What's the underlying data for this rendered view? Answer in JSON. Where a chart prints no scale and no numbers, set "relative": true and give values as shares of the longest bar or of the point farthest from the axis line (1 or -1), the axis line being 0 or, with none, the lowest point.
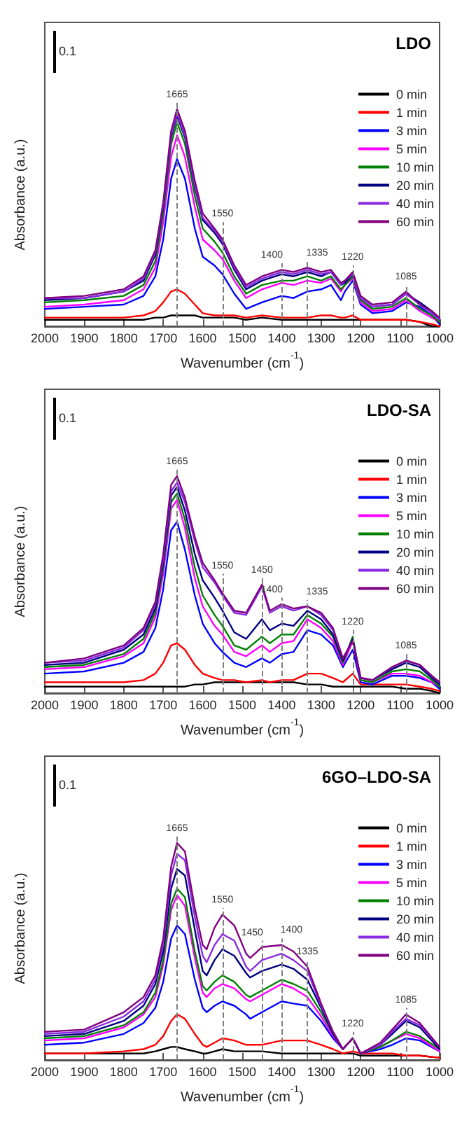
{
  "chart_data": [
    {
      "type": "line",
      "title": "LDO",
      "xlabel": "Wavenumber (cm$^{-1}$)",
      "ylabel": "Absorbance (a.u.)",
      "relative": true,
      "tick_labels": "x",
      "legend": "right",
      "annotations": [
        "0.1"
      ],
      "xlim": [
        2000,
        1000
      ],
      "xticks": [
        2000,
        1900,
        1800,
        1700,
        1600,
        1500,
        1400,
        1300,
        1200,
        1100,
        1000
      ],
      "x": [
        2000,
        1900,
        1800,
        1750,
        1720,
        1700,
        1680,
        1665,
        1645,
        1620,
        1600,
        1570,
        1550,
        1520,
        1490,
        1450,
        1400,
        1370,
        1335,
        1300,
        1275,
        1250,
        1240,
        1220,
        1200,
        1170,
        1120,
        1085,
        1050,
        1020,
        1000
      ],
      "ref_lines": [
        {
          "axis": "x",
          "value": 1665,
          "label": "1665",
          "line_style": "dashed",
          "color": "#808080"
        },
        {
          "axis": "x",
          "value": 1550,
          "label": "1550",
          "line_style": "dashed",
          "color": "#808080"
        },
        {
          "axis": "x",
          "value": 1400,
          "label": "1400",
          "line_style": "dashed",
          "color": "#808080"
        },
        {
          "axis": "x",
          "value": 1335,
          "label": "1335",
          "line_style": "dashed",
          "color": "#808080"
        },
        {
          "axis": "x",
          "value": 1220,
          "label": "1220",
          "line_style": "dashed",
          "color": "#808080"
        },
        {
          "axis": "x",
          "value": 1085,
          "label": "1085",
          "line_style": "dashed",
          "color": "#808080"
        }
      ],
      "series": [
        {
          "name": "0 min",
          "color": "#000000",
          "values": [
            0.03,
            0.03,
            0.03,
            0.03,
            0.04,
            0.04,
            0.05,
            0.05,
            0.05,
            0.05,
            0.04,
            0.04,
            0.04,
            0.04,
            0.03,
            0.04,
            0.03,
            0.03,
            0.03,
            0.03,
            0.03,
            0.03,
            0.03,
            0.03,
            0.03,
            0.03,
            0.03,
            0.03,
            0.02,
            0.0,
            0.0
          ]
        },
        {
          "name": "1 min",
          "color": "#ff0000",
          "values": [
            0.04,
            0.04,
            0.04,
            0.05,
            0.07,
            0.11,
            0.16,
            0.17,
            0.15,
            0.1,
            0.06,
            0.05,
            0.05,
            0.05,
            0.04,
            0.05,
            0.04,
            0.04,
            0.04,
            0.05,
            0.05,
            0.04,
            0.04,
            0.05,
            0.03,
            0.03,
            0.03,
            0.03,
            0.02,
            0.01,
            0.0
          ]
        },
        {
          "name": "3 min",
          "color": "#0000ff",
          "values": [
            0.08,
            0.09,
            0.1,
            0.14,
            0.23,
            0.4,
            0.68,
            0.77,
            0.68,
            0.45,
            0.32,
            0.28,
            0.24,
            0.15,
            0.08,
            0.11,
            0.14,
            0.13,
            0.16,
            0.17,
            0.19,
            0.12,
            0.16,
            0.21,
            0.1,
            0.06,
            0.07,
            0.11,
            0.09,
            0.05,
            0.01
          ]
        },
        {
          "name": "5 min",
          "color": "#ff00ff",
          "values": [
            0.09,
            0.1,
            0.12,
            0.17,
            0.27,
            0.48,
            0.78,
            0.88,
            0.78,
            0.55,
            0.4,
            0.35,
            0.31,
            0.21,
            0.13,
            0.17,
            0.2,
            0.19,
            0.21,
            0.2,
            0.22,
            0.16,
            0.19,
            0.22,
            0.11,
            0.07,
            0.08,
            0.12,
            0.07,
            0.04,
            0.02
          ]
        },
        {
          "name": "10 min",
          "color": "#008000",
          "values": [
            0.11,
            0.12,
            0.14,
            0.19,
            0.3,
            0.52,
            0.84,
            0.94,
            0.84,
            0.6,
            0.45,
            0.39,
            0.34,
            0.23,
            0.15,
            0.19,
            0.21,
            0.21,
            0.23,
            0.21,
            0.23,
            0.17,
            0.19,
            0.23,
            0.12,
            0.08,
            0.09,
            0.13,
            0.08,
            0.05,
            0.02
          ]
        },
        {
          "name": "20 min",
          "color": "#000080",
          "values": [
            0.12,
            0.13,
            0.16,
            0.21,
            0.33,
            0.55,
            0.87,
            0.97,
            0.87,
            0.64,
            0.49,
            0.43,
            0.38,
            0.26,
            0.17,
            0.21,
            0.24,
            0.23,
            0.25,
            0.23,
            0.25,
            0.19,
            0.2,
            0.24,
            0.13,
            0.09,
            0.1,
            0.15,
            0.11,
            0.07,
            0.03
          ]
        },
        {
          "name": "40 min",
          "color": "#8a2be2",
          "values": [
            0.13,
            0.13,
            0.16,
            0.22,
            0.34,
            0.56,
            0.88,
            0.98,
            0.88,
            0.65,
            0.5,
            0.44,
            0.39,
            0.27,
            0.18,
            0.22,
            0.25,
            0.24,
            0.26,
            0.24,
            0.25,
            0.19,
            0.21,
            0.24,
            0.13,
            0.09,
            0.1,
            0.15,
            0.1,
            0.06,
            0.03
          ]
        },
        {
          "name": "60 min",
          "color": "#800080",
          "values": [
            0.13,
            0.14,
            0.17,
            0.23,
            0.35,
            0.57,
            0.9,
            1.0,
            0.9,
            0.67,
            0.52,
            0.45,
            0.4,
            0.28,
            0.19,
            0.23,
            0.26,
            0.25,
            0.27,
            0.25,
            0.26,
            0.2,
            0.21,
            0.25,
            0.14,
            0.1,
            0.11,
            0.16,
            0.1,
            0.07,
            0.04
          ]
        }
      ]
    },
    {
      "type": "line",
      "title": "LDO-SA",
      "xlabel": "Wavenumber (cm$^{-1}$)",
      "ylabel": "Absorbance (a.u.)",
      "relative": true,
      "tick_labels": "x",
      "legend": "right",
      "annotations": [
        "0.1"
      ],
      "xlim": [
        2000,
        1000
      ],
      "xticks": [
        2000,
        1900,
        1800,
        1700,
        1600,
        1500,
        1400,
        1300,
        1200,
        1100,
        1000
      ],
      "x": [
        2000,
        1900,
        1800,
        1750,
        1720,
        1700,
        1680,
        1665,
        1645,
        1620,
        1600,
        1570,
        1550,
        1520,
        1490,
        1450,
        1430,
        1400,
        1370,
        1335,
        1300,
        1270,
        1245,
        1220,
        1200,
        1170,
        1120,
        1085,
        1050,
        1020,
        1000
      ],
      "ref_lines": [
        {
          "axis": "x",
          "value": 1665,
          "label": "1665",
          "line_style": "dashed",
          "color": "#808080"
        },
        {
          "axis": "x",
          "value": 1550,
          "label": "1550",
          "line_style": "dashed",
          "color": "#808080"
        },
        {
          "axis": "x",
          "value": 1450,
          "label": "1450",
          "line_style": "dashed",
          "color": "#808080"
        },
        {
          "axis": "x",
          "value": 1400,
          "label": "1400",
          "line_style": "dashed",
          "color": "#808080"
        },
        {
          "axis": "x",
          "value": 1335,
          "label": "1335",
          "line_style": "dashed",
          "color": "#808080"
        },
        {
          "axis": "x",
          "value": 1220,
          "label": "1220",
          "line_style": "dashed",
          "color": "#808080"
        },
        {
          "axis": "x",
          "value": 1085,
          "label": "1085",
          "line_style": "dashed",
          "color": "#808080"
        }
      ],
      "series": [
        {
          "name": "0 min",
          "color": "#000000",
          "values": [
            0.03,
            0.03,
            0.03,
            0.03,
            0.03,
            0.03,
            0.03,
            0.03,
            0.03,
            0.04,
            0.04,
            0.05,
            0.05,
            0.05,
            0.05,
            0.05,
            0.05,
            0.05,
            0.05,
            0.04,
            0.04,
            0.03,
            0.03,
            0.03,
            0.03,
            0.03,
            0.03,
            0.02,
            0.02,
            0.01,
            0.0
          ]
        },
        {
          "name": "1 min",
          "color": "#ff0000",
          "values": [
            0.05,
            0.05,
            0.05,
            0.06,
            0.09,
            0.14,
            0.22,
            0.23,
            0.2,
            0.13,
            0.09,
            0.07,
            0.06,
            0.06,
            0.05,
            0.06,
            0.05,
            0.06,
            0.06,
            0.09,
            0.09,
            0.07,
            0.05,
            0.09,
            0.04,
            0.04,
            0.04,
            0.04,
            0.03,
            0.02,
            0.01
          ]
        },
        {
          "name": "3 min",
          "color": "#0000ff",
          "values": [
            0.09,
            0.1,
            0.14,
            0.19,
            0.3,
            0.48,
            0.75,
            0.79,
            0.66,
            0.45,
            0.32,
            0.23,
            0.19,
            0.14,
            0.12,
            0.16,
            0.14,
            0.18,
            0.19,
            0.29,
            0.27,
            0.22,
            0.12,
            0.2,
            0.05,
            0.04,
            0.08,
            0.08,
            0.07,
            0.05,
            0.02
          ]
        },
        {
          "name": "5 min",
          "color": "#ff00ff",
          "values": [
            0.11,
            0.12,
            0.17,
            0.23,
            0.35,
            0.55,
            0.85,
            0.89,
            0.76,
            0.53,
            0.4,
            0.31,
            0.27,
            0.19,
            0.17,
            0.22,
            0.19,
            0.23,
            0.24,
            0.34,
            0.3,
            0.24,
            0.13,
            0.24,
            0.06,
            0.05,
            0.09,
            0.09,
            0.08,
            0.05,
            0.03
          ]
        },
        {
          "name": "10 min",
          "color": "#008000",
          "values": [
            0.12,
            0.13,
            0.18,
            0.25,
            0.37,
            0.58,
            0.88,
            0.92,
            0.8,
            0.58,
            0.45,
            0.36,
            0.31,
            0.22,
            0.2,
            0.26,
            0.23,
            0.27,
            0.27,
            0.36,
            0.32,
            0.26,
            0.14,
            0.26,
            0.06,
            0.05,
            0.1,
            0.11,
            0.1,
            0.06,
            0.03
          ]
        },
        {
          "name": "20 min",
          "color": "#000080",
          "values": [
            0.13,
            0.14,
            0.2,
            0.27,
            0.39,
            0.6,
            0.91,
            0.95,
            0.84,
            0.64,
            0.52,
            0.44,
            0.38,
            0.28,
            0.25,
            0.34,
            0.29,
            0.32,
            0.31,
            0.38,
            0.34,
            0.27,
            0.15,
            0.25,
            0.07,
            0.06,
            0.11,
            0.14,
            0.12,
            0.07,
            0.04
          ]
        },
        {
          "name": "40 min",
          "color": "#8a2be2",
          "values": [
            0.14,
            0.15,
            0.21,
            0.29,
            0.41,
            0.62,
            0.93,
            0.97,
            0.88,
            0.7,
            0.58,
            0.51,
            0.45,
            0.37,
            0.36,
            0.49,
            0.37,
            0.4,
            0.38,
            0.4,
            0.36,
            0.29,
            0.16,
            0.24,
            0.07,
            0.06,
            0.12,
            0.15,
            0.13,
            0.08,
            0.05
          ]
        },
        {
          "name": "60 min",
          "color": "#800080",
          "values": [
            0.14,
            0.16,
            0.22,
            0.3,
            0.42,
            0.64,
            0.96,
            1.0,
            0.9,
            0.72,
            0.6,
            0.52,
            0.46,
            0.38,
            0.37,
            0.5,
            0.38,
            0.41,
            0.39,
            0.4,
            0.37,
            0.3,
            0.16,
            0.24,
            0.07,
            0.06,
            0.12,
            0.15,
            0.13,
            0.08,
            0.05
          ]
        }
      ]
    },
    {
      "type": "line",
      "title": "6GO–LDO-SA",
      "xlabel": "Wavenumber (cm$^{-1}$)",
      "ylabel": "Absorbance (a.u.)",
      "relative": true,
      "tick_labels": "x",
      "legend": "right",
      "annotations": [
        "0.1"
      ],
      "xlim": [
        2000,
        1000
      ],
      "xticks": [
        2000,
        1900,
        1800,
        1700,
        1600,
        1500,
        1400,
        1300,
        1200,
        1100,
        1000
      ],
      "x": [
        2000,
        1900,
        1800,
        1750,
        1720,
        1700,
        1680,
        1665,
        1645,
        1620,
        1600,
        1590,
        1570,
        1550,
        1520,
        1490,
        1480,
        1450,
        1400,
        1370,
        1335,
        1300,
        1270,
        1245,
        1220,
        1200,
        1150,
        1120,
        1085,
        1050,
        1000
      ],
      "ref_lines": [
        {
          "axis": "x",
          "value": 1665,
          "label": "1665",
          "line_style": "dashed",
          "color": "#808080"
        },
        {
          "axis": "x",
          "value": 1550,
          "label": "1550",
          "line_style": "dashed",
          "color": "#808080"
        },
        {
          "axis": "x",
          "value": 1450,
          "label": "1450",
          "line_style": "dashed",
          "color": "#808080"
        },
        {
          "axis": "x",
          "value": 1400,
          "label": "1400",
          "line_style": "dashed",
          "color": "#808080"
        },
        {
          "axis": "x",
          "value": 1335,
          "label": "1335",
          "line_style": "dashed",
          "color": "#808080"
        },
        {
          "axis": "x",
          "value": 1220,
          "label": "1220",
          "line_style": "dashed",
          "color": "#808080"
        },
        {
          "axis": "x",
          "value": 1085,
          "label": "1085",
          "line_style": "dashed",
          "color": "#808080"
        }
      ],
      "series": [
        {
          "name": "0 min",
          "color": "#000000",
          "values": [
            0.03,
            0.03,
            0.03,
            0.03,
            0.04,
            0.05,
            0.06,
            0.06,
            0.05,
            0.04,
            0.03,
            0.03,
            0.04,
            0.05,
            0.04,
            0.04,
            0.04,
            0.04,
            0.03,
            0.03,
            0.03,
            0.03,
            0.03,
            0.03,
            0.03,
            0.02,
            0.02,
            0.02,
            0.02,
            0.02,
            0.01
          ]
        },
        {
          "name": "1 min",
          "color": "#ff0000",
          "values": [
            0.03,
            0.03,
            0.04,
            0.05,
            0.07,
            0.11,
            0.18,
            0.21,
            0.19,
            0.12,
            0.07,
            0.06,
            0.08,
            0.1,
            0.09,
            0.07,
            0.07,
            0.07,
            0.09,
            0.09,
            0.09,
            0.07,
            0.05,
            0.03,
            0.04,
            0.03,
            0.03,
            0.03,
            0.02,
            0.02,
            0.01
          ]
        },
        {
          "name": "3 min",
          "color": "#0000ff",
          "values": [
            0.07,
            0.08,
            0.12,
            0.17,
            0.24,
            0.36,
            0.56,
            0.62,
            0.58,
            0.37,
            0.24,
            0.22,
            0.25,
            0.27,
            0.25,
            0.21,
            0.19,
            0.22,
            0.27,
            0.26,
            0.25,
            0.18,
            0.1,
            0.05,
            0.1,
            0.03,
            0.05,
            0.07,
            0.1,
            0.09,
            0.04
          ]
        },
        {
          "name": "5 min",
          "color": "#ff00ff",
          "values": [
            0.09,
            0.1,
            0.15,
            0.21,
            0.29,
            0.44,
            0.69,
            0.76,
            0.71,
            0.47,
            0.31,
            0.29,
            0.33,
            0.35,
            0.33,
            0.28,
            0.27,
            0.3,
            0.35,
            0.33,
            0.29,
            0.2,
            0.11,
            0.05,
            0.1,
            0.03,
            0.06,
            0.09,
            0.12,
            0.1,
            0.04
          ]
        },
        {
          "name": "10 min",
          "color": "#008000",
          "values": [
            0.1,
            0.11,
            0.16,
            0.22,
            0.31,
            0.46,
            0.72,
            0.79,
            0.75,
            0.5,
            0.34,
            0.32,
            0.36,
            0.39,
            0.36,
            0.3,
            0.29,
            0.32,
            0.37,
            0.35,
            0.32,
            0.22,
            0.12,
            0.05,
            0.1,
            0.03,
            0.06,
            0.09,
            0.13,
            0.11,
            0.05
          ]
        },
        {
          "name": "20 min",
          "color": "#000080",
          "values": [
            0.11,
            0.12,
            0.18,
            0.25,
            0.35,
            0.5,
            0.79,
            0.88,
            0.85,
            0.6,
            0.41,
            0.39,
            0.46,
            0.51,
            0.48,
            0.4,
            0.38,
            0.41,
            0.44,
            0.42,
            0.37,
            0.24,
            0.12,
            0.05,
            0.1,
            0.03,
            0.07,
            0.12,
            0.18,
            0.15,
            0.05
          ]
        },
        {
          "name": "40 min",
          "color": "#8a2be2",
          "values": [
            0.12,
            0.13,
            0.2,
            0.27,
            0.37,
            0.53,
            0.85,
            0.95,
            0.92,
            0.66,
            0.48,
            0.45,
            0.53,
            0.58,
            0.55,
            0.43,
            0.41,
            0.46,
            0.49,
            0.46,
            0.41,
            0.25,
            0.13,
            0.05,
            0.1,
            0.03,
            0.07,
            0.13,
            0.19,
            0.16,
            0.06
          ]
        },
        {
          "name": "60 min",
          "color": "#800080",
          "values": [
            0.13,
            0.14,
            0.22,
            0.29,
            0.39,
            0.56,
            0.89,
            1.0,
            0.96,
            0.7,
            0.53,
            0.51,
            0.61,
            0.67,
            0.62,
            0.49,
            0.47,
            0.52,
            0.53,
            0.5,
            0.43,
            0.26,
            0.13,
            0.05,
            0.1,
            0.03,
            0.08,
            0.14,
            0.21,
            0.17,
            0.06
          ]
        }
      ]
    }
  ]
}
